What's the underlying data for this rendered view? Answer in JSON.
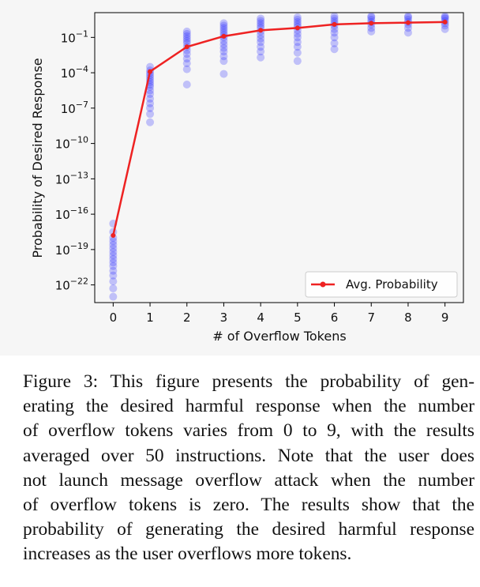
{
  "chart_data": {
    "type": "scatter",
    "xlabel": "# of Overflow Tokens",
    "ylabel": "Probability of Desired Response",
    "x_ticks": [
      "0",
      "1",
      "2",
      "3",
      "4",
      "5",
      "6",
      "7",
      "8",
      "9"
    ],
    "y_ticks": [
      {
        "base": "10",
        "exp": "−1",
        "value_log10": -1
      },
      {
        "base": "10",
        "exp": "−4",
        "value_log10": -4
      },
      {
        "base": "10",
        "exp": "−7",
        "value_log10": -7
      },
      {
        "base": "10",
        "exp": "−10",
        "value_log10": -10
      },
      {
        "base": "10",
        "exp": "−13",
        "value_log10": -13
      },
      {
        "base": "10",
        "exp": "−16",
        "value_log10": -16
      },
      {
        "base": "10",
        "exp": "−19",
        "value_log10": -19
      },
      {
        "base": "10",
        "exp": "−22",
        "value_log10": -22
      }
    ],
    "y_scale": "log",
    "xlim": [
      -0.5,
      9.5
    ],
    "ylim_log10": [
      -23.5,
      1.1
    ],
    "grid": false,
    "legend_position": "lower-right",
    "series": [
      {
        "name": "",
        "kind": "scatter",
        "color": "#1f1fff",
        "alpha": 0.25,
        "points_log10": [
          [
            -16.8,
            -17.5,
            -18.0,
            -18.3,
            -18.6,
            -18.9,
            -19.2,
            -19.5,
            -19.8,
            -20.1,
            -20.4,
            -20.8,
            -21.2,
            -21.7,
            -22.3,
            -23.0
          ],
          [
            -3.5,
            -3.8,
            -4.0,
            -4.2,
            -4.4,
            -4.6,
            -4.8,
            -5.0,
            -5.2,
            -5.5,
            -5.8,
            -6.2,
            -6.6,
            -7.0,
            -7.5,
            -8.2
          ],
          [
            -0.5,
            -0.7,
            -0.9,
            -1.1,
            -1.3,
            -1.5,
            -1.8,
            -2.1,
            -2.4,
            -2.8,
            -3.2,
            -3.7,
            -5.0
          ],
          [
            0.2,
            0.0,
            -0.2,
            -0.4,
            -0.6,
            -0.8,
            -1.0,
            -1.3,
            -1.6,
            -1.9,
            -2.2,
            -2.6,
            -3.0,
            -4.1
          ],
          [
            0.6,
            0.4,
            0.2,
            0.0,
            -0.2,
            -0.5,
            -0.8,
            -1.1,
            -1.4,
            -1.8,
            -2.2,
            -2.7
          ],
          [
            0.7,
            0.5,
            0.3,
            0.1,
            -0.1,
            -0.4,
            -0.7,
            -1.0,
            -1.4,
            -1.8,
            -2.3,
            -3.0
          ],
          [
            0.8,
            0.6,
            0.4,
            0.2,
            0.0,
            -0.3,
            -0.6,
            -1.0,
            -1.5,
            -2.0
          ],
          [
            0.8,
            0.7,
            0.5,
            0.3,
            0.1,
            -0.2,
            -0.5
          ],
          [
            0.8,
            0.7,
            0.5,
            0.3,
            0.1,
            -0.2,
            -0.6
          ],
          [
            0.8,
            0.7,
            0.6,
            0.4,
            0.2,
            0.0,
            -0.3
          ]
        ]
      },
      {
        "name": "Avg. Probability",
        "kind": "line",
        "color": "#ee2222",
        "x": [
          0,
          1,
          2,
          3,
          4,
          5,
          6,
          7,
          8,
          9
        ],
        "y_log10": [
          -17.8,
          -3.9,
          -1.8,
          -0.9,
          -0.4,
          -0.2,
          0.1,
          0.2,
          0.25,
          0.3
        ]
      }
    ]
  },
  "caption": {
    "lines": [
      "Figure 3: This figure presents the probability of gen-",
      "erating the desired harmful response when the number",
      "of overflow tokens varies from 0 to 9, with the results",
      "averaged over 50 instructions. Note that the user does",
      "not launch message overflow attack when the number",
      "of overflow tokens is zero.  The results show that the",
      "probability of generating the desired harmful response",
      "increases as the user overflows more tokens."
    ]
  }
}
